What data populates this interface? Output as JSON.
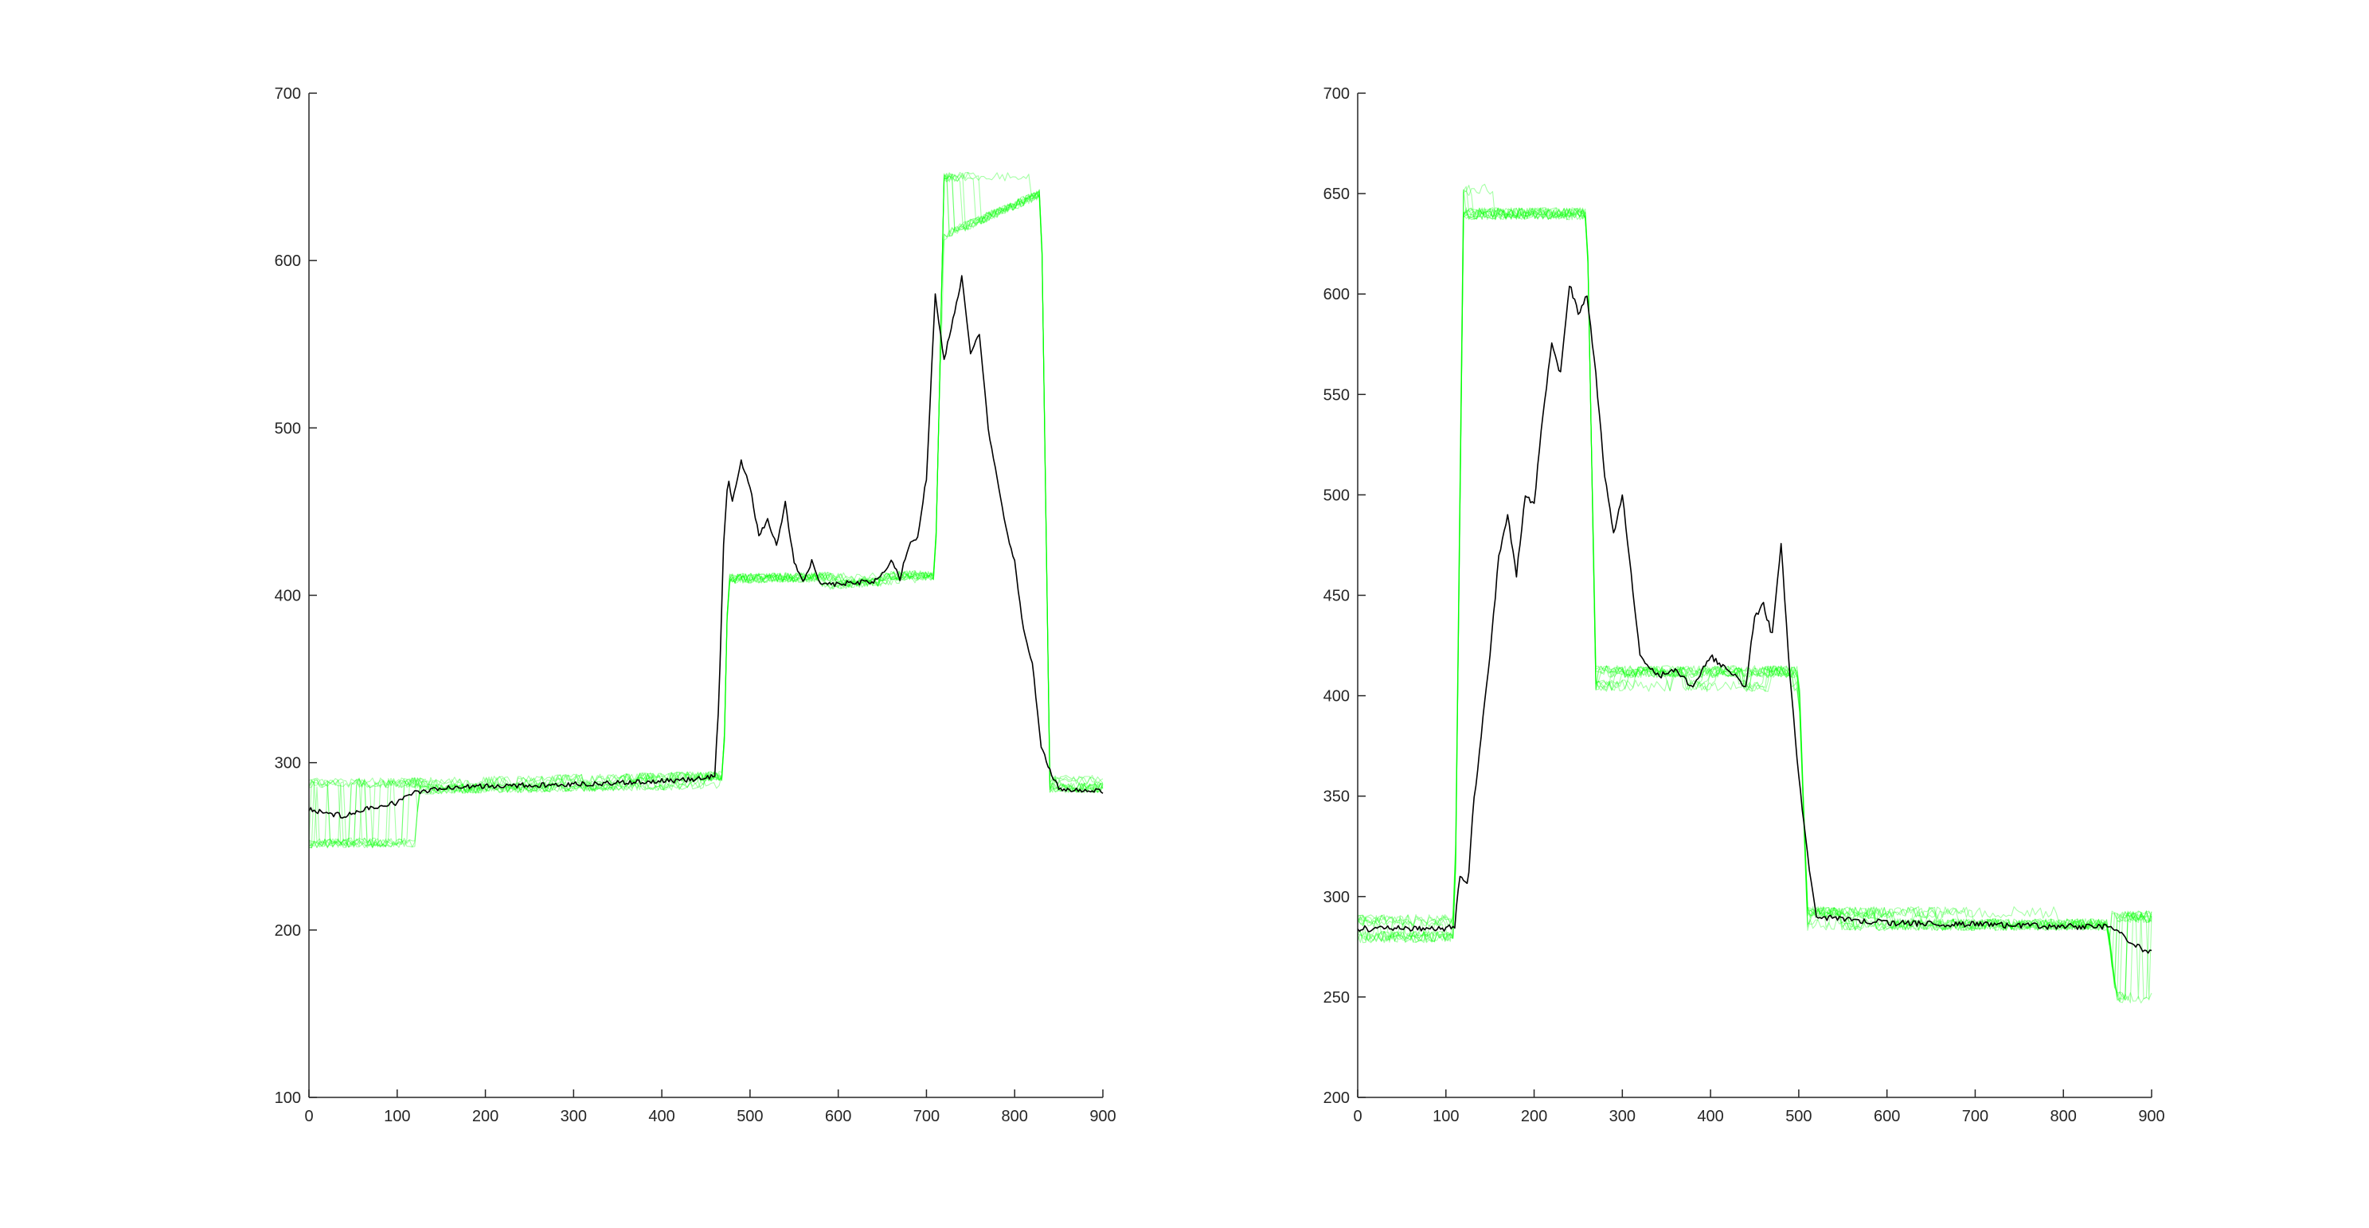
{
  "chart_data": [
    {
      "type": "line",
      "title": "",
      "xlabel": "",
      "ylabel": "",
      "xlim": [
        0,
        900
      ],
      "ylim": [
        100,
        700
      ],
      "xticks": [
        0,
        100,
        200,
        300,
        400,
        500,
        600,
        700,
        800,
        900
      ],
      "yticks": [
        100,
        200,
        300,
        400,
        500,
        600,
        700
      ],
      "grid": false,
      "legend": "none",
      "colors": {
        "mean": "#000000",
        "samples": "#00ff00"
      },
      "series": [
        {
          "role": "mean",
          "x": [
            0,
            20,
            40,
            60,
            80,
            100,
            120,
            150,
            200,
            300,
            400,
            440,
            460,
            465,
            470,
            475,
            480,
            490,
            500,
            510,
            520,
            530,
            540,
            550,
            560,
            570,
            580,
            600,
            640,
            660,
            670,
            680,
            690,
            700,
            710,
            720,
            730,
            740,
            750,
            760,
            770,
            780,
            790,
            800,
            810,
            820,
            830,
            840,
            850,
            860,
            880,
            900
          ],
          "y": [
            272,
            270,
            268,
            272,
            274,
            276,
            282,
            285,
            286,
            287,
            289,
            290,
            292,
            340,
            430,
            470,
            455,
            480,
            465,
            435,
            445,
            430,
            455,
            420,
            408,
            420,
            406,
            407,
            408,
            420,
            410,
            430,
            435,
            470,
            580,
            540,
            565,
            590,
            545,
            555,
            500,
            470,
            440,
            420,
            380,
            360,
            310,
            295,
            285,
            284,
            283,
            283
          ]
        },
        {
          "role": "sample-band",
          "x": [
            0,
            120,
            125,
            460,
            470,
            475,
            710,
            720,
            830,
            840,
            900
          ],
          "low": [
            252,
            252,
            284,
            287,
            290,
            403,
            410,
            615,
            640,
            285,
            285
          ],
          "high": [
            288,
            288,
            288,
            292,
            292,
            410,
            412,
            650,
            650,
            290,
            290
          ]
        }
      ]
    },
    {
      "type": "line",
      "title": "",
      "xlabel": "",
      "ylabel": "",
      "xlim": [
        0,
        900
      ],
      "ylim": [
        200,
        700
      ],
      "xticks": [
        0,
        100,
        200,
        300,
        400,
        500,
        600,
        700,
        800,
        900
      ],
      "yticks": [
        200,
        250,
        300,
        350,
        400,
        450,
        500,
        550,
        600,
        650,
        700
      ],
      "grid": false,
      "legend": "none",
      "colors": {
        "mean": "#000000",
        "samples": "#00ff00"
      },
      "series": [
        {
          "role": "mean",
          "x": [
            0,
            50,
            100,
            110,
            115,
            125,
            130,
            140,
            150,
            160,
            170,
            180,
            190,
            200,
            210,
            220,
            230,
            240,
            250,
            260,
            270,
            280,
            290,
            300,
            310,
            320,
            340,
            360,
            380,
            400,
            420,
            440,
            450,
            460,
            470,
            480,
            490,
            500,
            510,
            520,
            560,
            600,
            700,
            800,
            850,
            870,
            880,
            890,
            900
          ],
          "y": [
            284,
            284,
            284,
            285,
            310,
            305,
            340,
            380,
            420,
            470,
            490,
            460,
            500,
            495,
            540,
            575,
            560,
            605,
            590,
            600,
            560,
            510,
            480,
            500,
            460,
            420,
            410,
            412,
            405,
            420,
            412,
            405,
            440,
            445,
            430,
            475,
            410,
            360,
            320,
            290,
            288,
            287,
            286,
            285,
            285,
            280,
            276,
            274,
            272
          ]
        },
        {
          "role": "sample-band",
          "x": [
            0,
            110,
            120,
            260,
            270,
            280,
            480,
            500,
            510,
            850,
            860,
            900
          ],
          "low": [
            280,
            280,
            640,
            640,
            405,
            405,
            405,
            405,
            286,
            286,
            250,
            250
          ],
          "high": [
            288,
            288,
            652,
            652,
            412,
            412,
            412,
            412,
            292,
            292,
            290,
            290
          ]
        }
      ]
    }
  ]
}
